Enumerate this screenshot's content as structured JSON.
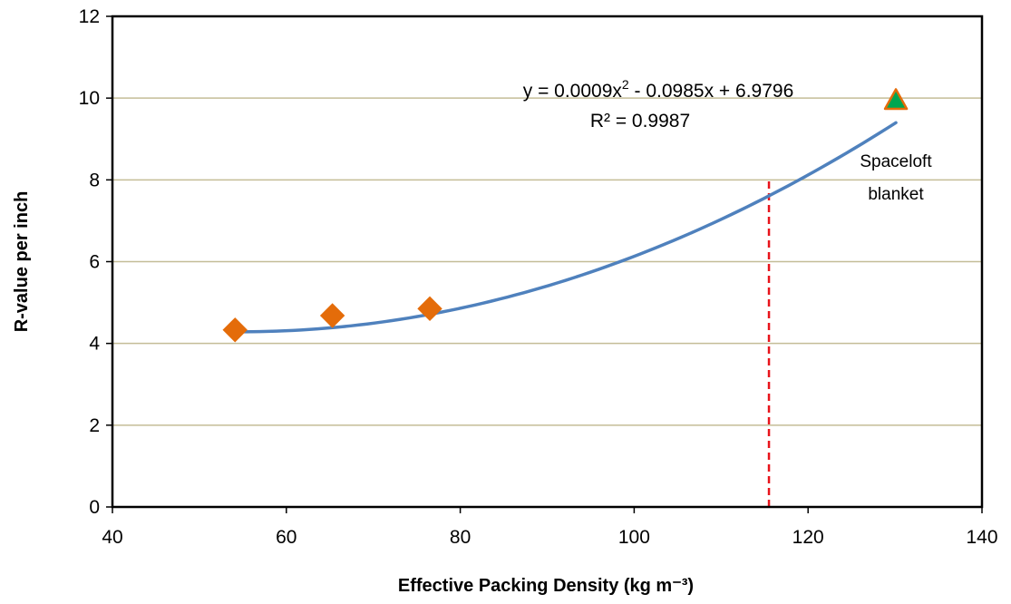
{
  "chart_data": {
    "type": "scatter",
    "xlabel": "Effective Packing Density (kg m⁻³)",
    "ylabel": "R-value per inch",
    "xlim": [
      40,
      140
    ],
    "ylim": [
      0,
      12
    ],
    "x_ticks": [
      40,
      60,
      80,
      100,
      120,
      140
    ],
    "y_ticks": [
      0,
      2,
      4,
      6,
      8,
      10,
      12
    ],
    "grid": "horizontal",
    "series": [
      {
        "marker": "diamond",
        "color": "#E46C0A",
        "points": [
          {
            "x": 54.1,
            "y": 4.33
          },
          {
            "x": 65.3,
            "y": 4.68
          },
          {
            "x": 76.5,
            "y": 4.85
          }
        ]
      },
      {
        "marker": "triangle",
        "color": "#00A651",
        "edge_color": "#E46C0A",
        "points": [
          {
            "x": 130.1,
            "y": 9.95
          }
        ]
      }
    ],
    "trendline": {
      "type": "polynomial",
      "coefficients": {
        "a": 0.0009,
        "b": -0.0985,
        "c": 6.9796
      },
      "x_range": [
        54.1,
        130.1
      ],
      "color": "#4F81BD",
      "equation_text": "y = 0.0009x² - 0.0985x + 6.9796",
      "r2_text": "R² = 0.9987"
    },
    "reference_line": {
      "x": 115.5,
      "y_from": 0,
      "y_to": 8.0,
      "color": "#E8141B",
      "style": "dashed"
    },
    "annotations": [
      {
        "text": "Spaceloft",
        "x": 130,
        "y": 8.8
      },
      {
        "text": "blanket",
        "x": 130,
        "y": 7.8
      }
    ]
  },
  "colors": {
    "gridline": "#C4BD97",
    "axis": "#000000"
  }
}
